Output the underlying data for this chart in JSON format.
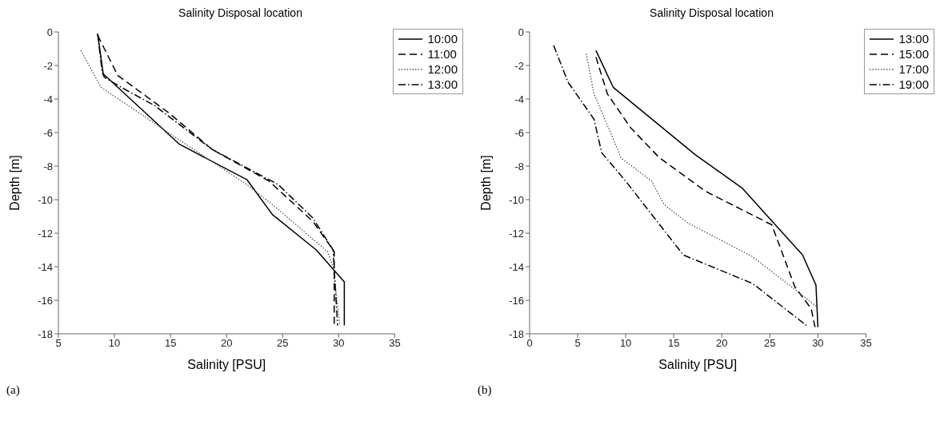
{
  "chart_data": [
    {
      "type": "line",
      "title": "Salinity Disposal location",
      "xlabel": "Salinity [PSU]",
      "ylabel": "Depth [m]",
      "xlim": [
        5,
        35
      ],
      "xticks": [
        5,
        10,
        15,
        20,
        25,
        30,
        35
      ],
      "ylim": [
        -18,
        0
      ],
      "yticks": [
        -18,
        -16,
        -14,
        -12,
        -10,
        -8,
        -6,
        -4,
        -2,
        0
      ],
      "legend": "top right",
      "grid": false,
      "annotations": [
        "(a)"
      ],
      "series": [
        {
          "name": "10:00",
          "color": "#000000",
          "line_style": "solid",
          "x": [
            8.5,
            9.0,
            15.8,
            21.8,
            24.1,
            28.0,
            30.5,
            30.5
          ],
          "values": [
            -0.1,
            -2.5,
            -6.7,
            -8.8,
            -10.9,
            -13.0,
            -14.9,
            -17.5
          ]
        },
        {
          "name": "11:00",
          "color": "#000000",
          "line_style": "dashed",
          "x": [
            8.5,
            10.3,
            14.8,
            18.7,
            23.8,
            27.7,
            29.6,
            29.6
          ],
          "values": [
            -0.2,
            -2.6,
            -4.8,
            -7.0,
            -8.9,
            -11.3,
            -13.1,
            -17.5
          ]
        },
        {
          "name": "12:00",
          "color": "#555555",
          "line_style": "dotted",
          "x": [
            7.0,
            8.8,
            14.8,
            21.8,
            24.1,
            29.0,
            29.5,
            30.1
          ],
          "values": [
            -1.1,
            -3.3,
            -6.0,
            -9.1,
            -10.3,
            -13.1,
            -14.0,
            -17.5
          ]
        },
        {
          "name": "13:00",
          "color": "#000000",
          "line_style": "dashdot",
          "x": [
            8.5,
            8.9,
            9.1,
            10.6,
            13.6,
            18.7,
            24.6,
            27.7,
            29.5,
            29.9
          ],
          "values": [
            -0.1,
            -2.4,
            -2.7,
            -3.3,
            -4.4,
            -7.0,
            -9.1,
            -11.1,
            -13.0,
            -17.5
          ]
        }
      ]
    },
    {
      "type": "line",
      "title": "Salinity Disposal location",
      "xlabel": "Salinity [PSU]",
      "ylabel": "Depth [m]",
      "xlim": [
        0,
        35
      ],
      "xticks": [
        0,
        5,
        10,
        15,
        20,
        25,
        30,
        35
      ],
      "ylim": [
        -18,
        0
      ],
      "yticks": [
        -18,
        -16,
        -14,
        -12,
        -10,
        -8,
        -6,
        -4,
        -2,
        0
      ],
      "legend": "top right",
      "grid": false,
      "annotations": [
        "(b)"
      ],
      "series": [
        {
          "name": "13:00",
          "color": "#000000",
          "line_style": "solid",
          "x": [
            6.9,
            8.7,
            17.2,
            22.1,
            25.1,
            28.4,
            29.8,
            30.0
          ],
          "values": [
            -1.1,
            -3.3,
            -7.3,
            -9.3,
            -11.2,
            -13.3,
            -15.1,
            -17.6
          ]
        },
        {
          "name": "15:00",
          "color": "#000000",
          "line_style": "dashed",
          "x": [
            6.9,
            8.1,
            10.5,
            13.5,
            18.3,
            25.2,
            27.6,
            29.3,
            29.7
          ],
          "values": [
            -1.5,
            -3.7,
            -5.7,
            -7.5,
            -9.5,
            -11.5,
            -15.2,
            -16.5,
            -17.6
          ]
        },
        {
          "name": "17:00",
          "color": "#555555",
          "line_style": "dotted",
          "x": [
            5.9,
            6.7,
            8.5,
            9.5,
            12.7,
            14.0,
            16.5,
            23.2,
            26.8,
            29.9
          ],
          "values": [
            -1.3,
            -3.7,
            -6.1,
            -7.5,
            -8.9,
            -10.3,
            -11.4,
            -13.4,
            -15.0,
            -16.4
          ]
        },
        {
          "name": "19:00",
          "color": "#000000",
          "line_style": "dashdot",
          "x": [
            2.5,
            4.0,
            6.7,
            7.5,
            10.0,
            16.0,
            23.2,
            28.8
          ],
          "values": [
            -0.8,
            -3.0,
            -5.2,
            -7.2,
            -8.9,
            -13.3,
            -15.0,
            -17.5
          ]
        }
      ]
    }
  ]
}
